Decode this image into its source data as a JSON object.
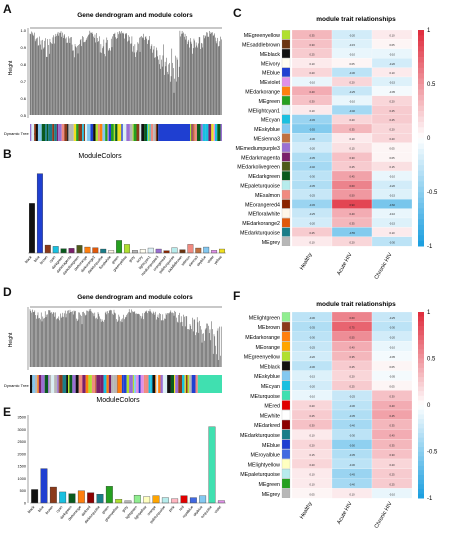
{
  "panels": {
    "A": {
      "letter": "A",
      "title": "Gene dendrogram and module colors",
      "ylabel": "Height",
      "yticks": [
        "1.0",
        "0.9",
        "0.8",
        "0.7",
        "0.6",
        "0.5"
      ],
      "tree_label": "Dynamic Tree Cut"
    },
    "B": {
      "letter": "B",
      "title": "ModuleColors",
      "chart_data": {
        "type": "bar",
        "title": "ModuleColors",
        "xlabel": "",
        "ylabel": "",
        "ylim": [
          0,
          2600
        ],
        "categories": [
          "black",
          "blue",
          "brown",
          "cyan",
          "darkgreen",
          "darkmagenta",
          "darkolivegreen",
          "darkorange",
          "darkorange2",
          "darkturquoise",
          "floralwhite",
          "green",
          "greenyellow",
          "grey",
          "ivory",
          "lightcyan1",
          "mediumpurple3",
          "orangered4",
          "paleturquoise",
          "saddlebrown",
          "salmon",
          "sienna3",
          "skyblue",
          "violet",
          "yellow"
        ],
        "values": [
          1500,
          2400,
          240,
          200,
          130,
          140,
          230,
          180,
          160,
          120,
          80,
          380,
          260,
          80,
          110,
          150,
          120,
          70,
          160,
          100,
          260,
          150,
          180,
          80,
          120
        ],
        "colors": [
          "#111111",
          "#1f3fd1",
          "#8b3a1a",
          "#19c0e0",
          "#0a5a1e",
          "#7a1f6a",
          "#4d5a1a",
          "#ff7f0e",
          "#e0580a",
          "#1a7d88",
          "#fff6e8",
          "#26a020",
          "#b0e030",
          "#b7b7b7",
          "#fffdf0",
          "#dbf0f5",
          "#9a6fd3",
          "#8b2500",
          "#b7ecec",
          "#6b3410",
          "#f08a80",
          "#c07040",
          "#84c8f0",
          "#e090e8",
          "#f0e020"
        ]
      }
    },
    "C": {
      "letter": "C",
      "title": "module trait relationships",
      "rows": [
        "MEgreenyellow",
        "MEsaddlebrown",
        "MEblack",
        "MEivory",
        "MEblue",
        "MEviolet",
        "MEdarkorange",
        "MEgreen",
        "MElightcyan1",
        "MEcyan",
        "MEskyblue",
        "MEsienna3",
        "MEmediumpurple3",
        "MEdarkmagenta",
        "MEdarkolivegreen",
        "MEdarkgreen",
        "MEpaleturquoise",
        "MEsalmon",
        "MEorangered4",
        "MEfloralwhite",
        "MEdarkorange2",
        "MEdarkturquoise",
        "MEgrey"
      ],
      "row_colors": [
        "#b0e030",
        "#6b3410",
        "#111111",
        "#fffdf0",
        "#1f3fd1",
        "#e090e8",
        "#ff7f0e",
        "#26a020",
        "#dbf0f5",
        "#19c0e0",
        "#84c8f0",
        "#c07040",
        "#9a6fd3",
        "#7a1f6a",
        "#4d5a1a",
        "#0a5a1e",
        "#b7ecec",
        "#f08a80",
        "#8b2500",
        "#fff6e8",
        "#e0580a",
        "#1a7d88",
        "#b7b7b7"
      ],
      "cols": [
        "Healthy",
        "Acute HIV",
        "Chronic HIV"
      ],
      "values": [
        [
          0.35,
          -0.2,
          0.1
        ],
        [
          0.3,
          -0.15,
          0.05
        ],
        [
          0.25,
          -0.1,
          -0.1
        ],
        [
          0.1,
          0.05,
          -0.2
        ],
        [
          0.2,
          -0.3,
          0.1
        ],
        [
          -0.1,
          0.2,
          -0.15
        ],
        [
          0.4,
          -0.25,
          -0.05
        ],
        [
          0.3,
          -0.1,
          0.2
        ],
        [
          0.1,
          -0.4,
          0.25
        ],
        [
          -0.45,
          0.2,
          0.25
        ],
        [
          -0.55,
          0.35,
          0.2
        ],
        [
          -0.3,
          0.1,
          0.2
        ],
        [
          -0.2,
          0.15,
          0.05
        ],
        [
          -0.35,
          0.3,
          0.05
        ],
        [
          -0.4,
          0.25,
          0.15
        ],
        [
          -0.3,
          0.45,
          -0.1
        ],
        [
          -0.35,
          0.6,
          -0.2
        ],
        [
          -0.25,
          0.5,
          -0.15
        ],
        [
          -0.45,
          0.9,
          -0.6
        ],
        [
          -0.25,
          0.4,
          -0.1
        ],
        [
          -0.2,
          0.35,
          -0.15
        ],
        [
          0.25,
          -0.55,
          0.1
        ],
        [
          0.1,
          0.2,
          -0.3
        ]
      ],
      "scale": [
        "1",
        "0.5",
        "0",
        "-0.5",
        "-1"
      ]
    },
    "D": {
      "letter": "D",
      "title": "Gene dendrogram and module colors",
      "ylabel": "Height",
      "tree_label": "Dynamic Tree Cut"
    },
    "E": {
      "letter": "E",
      "title": "ModuleColors",
      "chart_data": {
        "type": "bar",
        "title": "ModuleColors",
        "xlabel": "",
        "ylabel": "",
        "ylim": [
          0,
          3500
        ],
        "yticks": [
          "3500",
          "3000",
          "2500",
          "2000",
          "1500",
          "1000",
          "500",
          "0"
        ],
        "categories": [
          "black",
          "blue",
          "brown",
          "cyan",
          "darkgreen",
          "darkorange",
          "darkred",
          "darkturquoise",
          "green",
          "greenyellow",
          "grey",
          "lightgreen",
          "lightyellow",
          "orange",
          "paleturquoise",
          "pink",
          "red",
          "royalblue",
          "skyblue",
          "turquoise",
          "violet"
        ],
        "values": [
          550,
          1400,
          650,
          450,
          380,
          500,
          420,
          360,
          680,
          150,
          90,
          320,
          260,
          300,
          220,
          170,
          300,
          220,
          300,
          3100,
          100
        ],
        "colors": [
          "#111111",
          "#1f3fd1",
          "#8b3a1a",
          "#19c0e0",
          "#0a5a1e",
          "#ff7f0e",
          "#8b0000",
          "#1a7d88",
          "#26a020",
          "#b0e030",
          "#b7b7b7",
          "#90ee90",
          "#ffffc0",
          "#ffa500",
          "#b7ecec",
          "#ffb6c1",
          "#e00000",
          "#4169e1",
          "#84c8f0",
          "#40e0b0",
          "#e090e8"
        ]
      }
    },
    "F": {
      "letter": "F",
      "title": "module trait relationships",
      "rows": [
        "MElightgreen",
        "MEbrown",
        "MEdarkorange",
        "MEorange",
        "MEgreenyellow",
        "MEblack",
        "MEskyblue",
        "MEcyan",
        "MEturquoise",
        "MEred",
        "MEwhite",
        "MEdarkred",
        "MEdarkturquoise",
        "MEblue",
        "MEroyalblue",
        "MElightyellow",
        "MEpaleturquoise",
        "MEgreen",
        "MEgrey"
      ],
      "row_colors": [
        "#90ee90",
        "#8b3a1a",
        "#ff7f0e",
        "#ffa500",
        "#b0e030",
        "#111111",
        "#84c8f0",
        "#19c0e0",
        "#40e0b0",
        "#e00000",
        "#ffffff",
        "#8b0000",
        "#1a7d88",
        "#1f3fd1",
        "#4169e1",
        "#ffffc0",
        "#b7ecec",
        "#26a020",
        "#b7b7b7"
      ],
      "cols": [
        "Healthy",
        "Acute HIV",
        "Chronic HIV"
      ],
      "values": [
        [
          -0.3,
          0.6,
          -0.25
        ],
        [
          -0.35,
          0.75,
          -0.3
        ],
        [
          -0.3,
          0.55,
          -0.2
        ],
        [
          -0.25,
          0.4,
          -0.1
        ],
        [
          -0.2,
          0.35,
          -0.05
        ],
        [
          -0.3,
          0.25,
          0.05
        ],
        [
          -0.15,
          0.2,
          -0.05
        ],
        [
          -0.2,
          0.25,
          0.05
        ],
        [
          -0.1,
          -0.25,
          0.3
        ],
        [
          0.2,
          -0.3,
          0.4
        ],
        [
          0.25,
          -0.35,
          0.45
        ],
        [
          0.3,
          -0.4,
          0.35
        ],
        [
          0.1,
          -0.3,
          0.4
        ],
        [
          0.2,
          -0.5,
          0.35
        ],
        [
          0.15,
          -0.35,
          0.3
        ],
        [
          0.2,
          -0.3,
          0.2
        ],
        [
          0.1,
          -0.45,
          0.25
        ],
        [
          0.1,
          -0.4,
          0.25
        ],
        [
          0.05,
          0.1,
          -0.1
        ]
      ],
      "scale": [
        "1",
        "0.5",
        "0",
        "-0.5",
        "-1"
      ]
    }
  },
  "colors": {
    "pos": "#e03040",
    "neg": "#1ea0e0",
    "mid": "#ffffff"
  }
}
